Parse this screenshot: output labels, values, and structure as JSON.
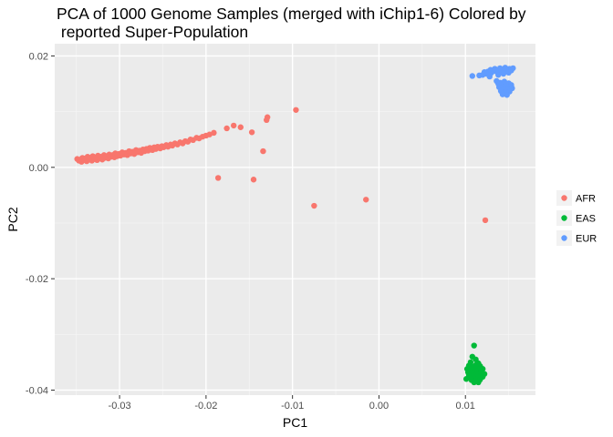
{
  "chart_data": {
    "type": "scatter",
    "title": "PCA of 1000 Genome Samples (merged with iChip1-6) Colored by\n reported Super-Population",
    "xlabel": "PC1",
    "ylabel": "PC2",
    "xlim": [
      -0.0375,
      0.0181
    ],
    "ylim": [
      -0.0409,
      0.0222
    ],
    "x_ticks": [
      {
        "value": -0.03,
        "label": "-0.03"
      },
      {
        "value": -0.02,
        "label": "-0.02"
      },
      {
        "value": -0.01,
        "label": "-0.01"
      },
      {
        "value": 0.0,
        "label": "0.00"
      },
      {
        "value": 0.01,
        "label": "0.01"
      }
    ],
    "y_ticks": [
      {
        "value": 0.02,
        "label": "0.02"
      },
      {
        "value": 0.0,
        "label": "0.00"
      },
      {
        "value": -0.02,
        "label": "-0.02"
      },
      {
        "value": -0.04,
        "label": "-0.04"
      }
    ],
    "grid": true,
    "legend_position": "right",
    "series": [
      {
        "name": "AFR",
        "color": "#F8766D",
        "points": [
          [
            -0.0349,
            0.0015
          ],
          [
            -0.0347,
            0.0012
          ],
          [
            -0.0345,
            0.0014
          ],
          [
            -0.0344,
            0.001
          ],
          [
            -0.0343,
            0.0017
          ],
          [
            -0.0341,
            0.0013
          ],
          [
            -0.034,
            0.0016
          ],
          [
            -0.0338,
            0.0011
          ],
          [
            -0.0337,
            0.0019
          ],
          [
            -0.0335,
            0.0014
          ],
          [
            -0.0334,
            0.0017
          ],
          [
            -0.0332,
            0.0012
          ],
          [
            -0.0331,
            0.002
          ],
          [
            -0.0329,
            0.0015
          ],
          [
            -0.0328,
            0.0018
          ],
          [
            -0.0326,
            0.0013
          ],
          [
            -0.0325,
            0.0021
          ],
          [
            -0.0323,
            0.0016
          ],
          [
            -0.0322,
            0.0019
          ],
          [
            -0.032,
            0.0014
          ],
          [
            -0.0318,
            0.0022
          ],
          [
            -0.0317,
            0.0017
          ],
          [
            -0.0315,
            0.002
          ],
          [
            -0.0313,
            0.0016
          ],
          [
            -0.0312,
            0.0023
          ],
          [
            -0.031,
            0.0019
          ],
          [
            -0.0308,
            0.0022
          ],
          [
            -0.0306,
            0.0018
          ],
          [
            -0.0305,
            0.0025
          ],
          [
            -0.0303,
            0.002
          ],
          [
            -0.0301,
            0.0024
          ],
          [
            -0.0299,
            0.0021
          ],
          [
            -0.0297,
            0.0027
          ],
          [
            -0.0295,
            0.0023
          ],
          [
            -0.0293,
            0.0026
          ],
          [
            -0.0291,
            0.0022
          ],
          [
            -0.0289,
            0.0029
          ],
          [
            -0.0287,
            0.0025
          ],
          [
            -0.0285,
            0.0028
          ],
          [
            -0.0283,
            0.0024
          ],
          [
            -0.0281,
            0.0031
          ],
          [
            -0.0279,
            0.0027
          ],
          [
            -0.0277,
            0.003
          ],
          [
            -0.0275,
            0.0026
          ],
          [
            -0.0273,
            0.0032
          ],
          [
            -0.0271,
            0.0029
          ],
          [
            -0.0269,
            0.0033
          ],
          [
            -0.0267,
            0.003
          ],
          [
            -0.0265,
            0.0035
          ],
          [
            -0.0262,
            0.0031
          ],
          [
            -0.026,
            0.0036
          ],
          [
            -0.0258,
            0.0033
          ],
          [
            -0.0256,
            0.0037
          ],
          [
            -0.0253,
            0.0034
          ],
          [
            -0.0251,
            0.0038
          ],
          [
            -0.0249,
            0.0036
          ],
          [
            -0.0246,
            0.004
          ],
          [
            -0.0244,
            0.0037
          ],
          [
            -0.0241,
            0.0041
          ],
          [
            -0.0239,
            0.0039
          ],
          [
            -0.0236,
            0.0043
          ],
          [
            -0.0233,
            0.0041
          ],
          [
            -0.023,
            0.0045
          ],
          [
            -0.0227,
            0.0043
          ],
          [
            -0.0224,
            0.0047
          ],
          [
            -0.0221,
            0.0046
          ],
          [
            -0.0218,
            0.005
          ],
          [
            -0.0215,
            0.0049
          ],
          [
            -0.0211,
            0.0053
          ],
          [
            -0.0208,
            0.0052
          ],
          [
            -0.0204,
            0.0055
          ],
          [
            -0.02,
            0.0057
          ],
          [
            -0.0196,
            0.0059
          ],
          [
            -0.0191,
            0.0062
          ],
          [
            -0.0176,
            0.007
          ],
          [
            -0.0168,
            0.0075
          ],
          [
            -0.016,
            0.0072
          ],
          [
            -0.0147,
            0.0063
          ],
          [
            -0.013,
            0.0085
          ],
          [
            -0.0129,
            0.009
          ],
          [
            -0.0096,
            0.0103
          ],
          [
            -0.0134,
            0.0029
          ],
          [
            -0.0186,
            -0.0019
          ],
          [
            -0.0145,
            -0.0022
          ],
          [
            -0.0075,
            -0.0069
          ],
          [
            -0.0015,
            -0.0058
          ],
          [
            0.0123,
            -0.0095
          ]
        ]
      },
      {
        "name": "EAS",
        "color": "#00BA38",
        "points": [
          [
            0.011,
            -0.032
          ],
          [
            0.0108,
            -0.034
          ],
          [
            0.0106,
            -0.035
          ],
          [
            0.0112,
            -0.0345
          ],
          [
            0.0115,
            -0.0352
          ],
          [
            0.0104,
            -0.0356
          ],
          [
            0.0109,
            -0.0358
          ],
          [
            0.0113,
            -0.036
          ],
          [
            0.0117,
            -0.0357
          ],
          [
            0.0102,
            -0.0362
          ],
          [
            0.0106,
            -0.0364
          ],
          [
            0.0111,
            -0.0365
          ],
          [
            0.0116,
            -0.0363
          ],
          [
            0.012,
            -0.0362
          ],
          [
            0.0103,
            -0.0368
          ],
          [
            0.0108,
            -0.0369
          ],
          [
            0.0113,
            -0.037
          ],
          [
            0.0118,
            -0.0368
          ],
          [
            0.0104,
            -0.0373
          ],
          [
            0.0109,
            -0.0374
          ],
          [
            0.0114,
            -0.0375
          ],
          [
            0.0119,
            -0.0373
          ],
          [
            0.0105,
            -0.0378
          ],
          [
            0.011,
            -0.0379
          ],
          [
            0.0115,
            -0.0378
          ],
          [
            0.012,
            -0.0376
          ],
          [
            0.0107,
            -0.0382
          ],
          [
            0.0112,
            -0.0383
          ],
          [
            0.0117,
            -0.0381
          ],
          [
            0.011,
            -0.0386
          ],
          [
            0.0115,
            -0.0386
          ],
          [
            0.0101,
            -0.038
          ],
          [
            0.0122,
            -0.0371
          ],
          [
            0.0112,
            -0.0355
          ]
        ]
      },
      {
        "name": "EUR",
        "color": "#619CFF",
        "points": [
          [
            0.0108,
            0.0164
          ],
          [
            0.0116,
            0.0165
          ],
          [
            0.012,
            0.0166
          ],
          [
            0.0124,
            0.0168
          ],
          [
            0.0127,
            0.0167
          ],
          [
            0.0122,
            0.0171
          ],
          [
            0.0126,
            0.0172
          ],
          [
            0.013,
            0.017
          ],
          [
            0.0133,
            0.0173
          ],
          [
            0.0129,
            0.0175
          ],
          [
            0.0136,
            0.0172
          ],
          [
            0.0139,
            0.0174
          ],
          [
            0.0134,
            0.0177
          ],
          [
            0.0142,
            0.0173
          ],
          [
            0.0145,
            0.0176
          ],
          [
            0.014,
            0.0178
          ],
          [
            0.0148,
            0.0175
          ],
          [
            0.0151,
            0.0177
          ],
          [
            0.0146,
            0.0179
          ],
          [
            0.0153,
            0.0174
          ],
          [
            0.015,
            0.017
          ],
          [
            0.0144,
            0.0168
          ],
          [
            0.0138,
            0.0166
          ],
          [
            0.0128,
            0.0163
          ],
          [
            0.0155,
            0.0178
          ],
          [
            0.0136,
            0.0155
          ],
          [
            0.014,
            0.0152
          ],
          [
            0.0145,
            0.0154
          ],
          [
            0.015,
            0.0151
          ],
          [
            0.0142,
            0.0148
          ],
          [
            0.0147,
            0.0146
          ],
          [
            0.0152,
            0.0144
          ],
          [
            0.0139,
            0.0144
          ],
          [
            0.0144,
            0.0141
          ],
          [
            0.0149,
            0.0139
          ],
          [
            0.0154,
            0.0142
          ],
          [
            0.0141,
            0.0137
          ],
          [
            0.0146,
            0.0135
          ],
          [
            0.0151,
            0.0136
          ],
          [
            0.0143,
            0.0131
          ],
          [
            0.0148,
            0.013
          ],
          [
            0.0153,
            0.0148
          ],
          [
            0.0138,
            0.015
          ]
        ]
      }
    ]
  }
}
